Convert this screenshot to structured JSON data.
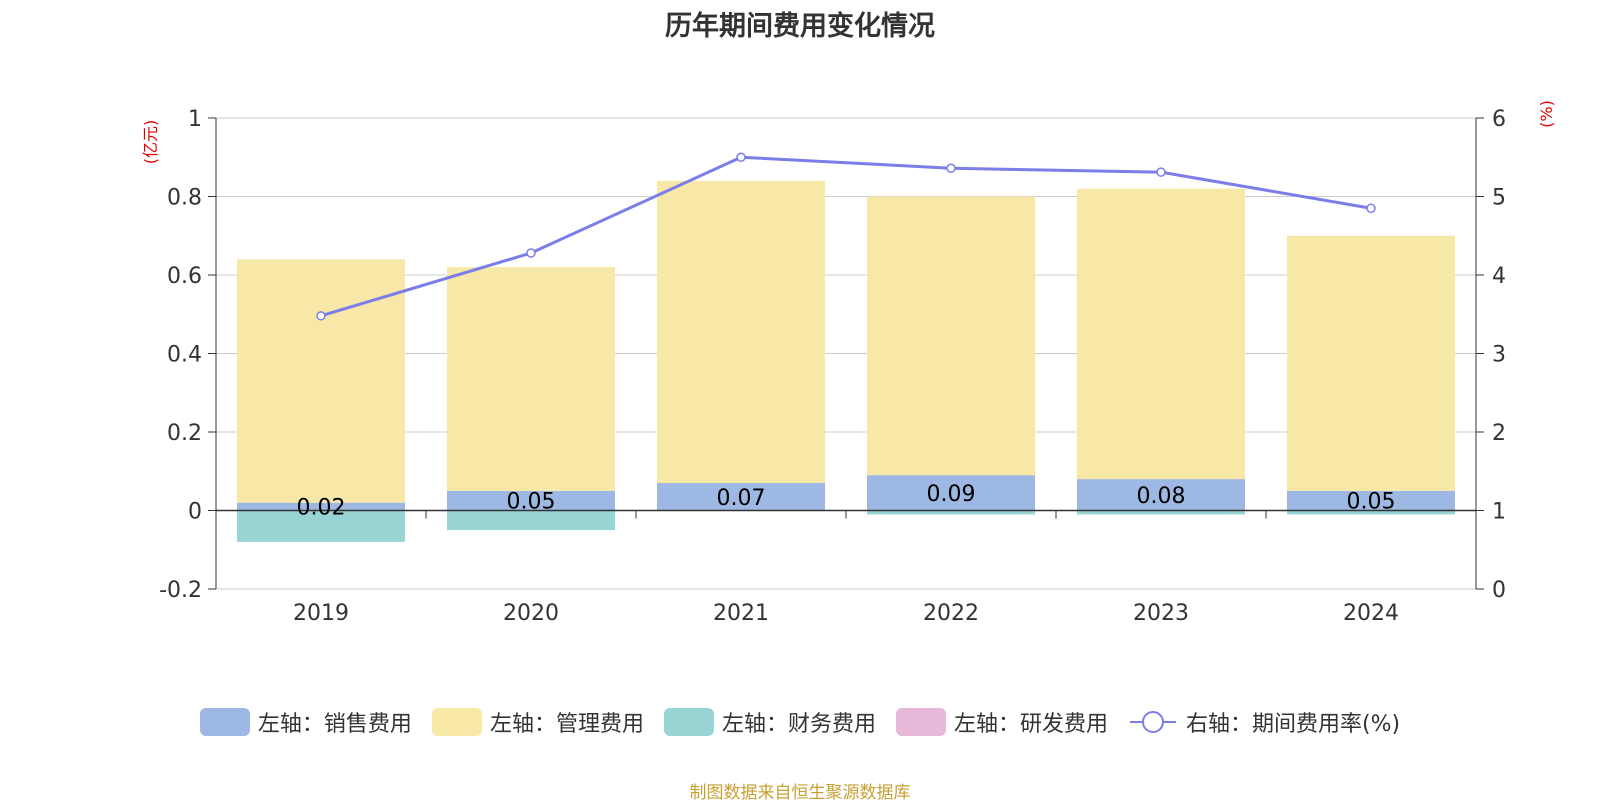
{
  "chart_data": {
    "type": "bar",
    "title": "历年期间费用变化情况",
    "categories": [
      "2019",
      "2020",
      "2021",
      "2022",
      "2023",
      "2024"
    ],
    "y_left": {
      "label": "(亿元)",
      "ylim": [
        -0.2,
        1
      ],
      "ticks": [
        "-0.2",
        "0",
        "0.2",
        "0.4",
        "0.6",
        "0.8",
        "1"
      ]
    },
    "y_right": {
      "label": "(%)",
      "ylim": [
        0,
        6
      ],
      "ticks": [
        "0",
        "1",
        "2",
        "3",
        "4",
        "5",
        "6"
      ]
    },
    "series": [
      {
        "name": "左轴：销售费用",
        "type": "bar",
        "axis": "left",
        "color": "#9db8e2",
        "values": [
          0.02,
          0.05,
          0.07,
          0.09,
          0.08,
          0.05
        ],
        "labels": [
          "0.02",
          "0.05",
          "0.07",
          "0.09",
          "0.08",
          "0.05"
        ]
      },
      {
        "name": "左轴：管理费用",
        "type": "bar",
        "axis": "left",
        "color": "#f7e8a8",
        "values": [
          0.62,
          0.57,
          0.77,
          0.71,
          0.74,
          0.65
        ]
      },
      {
        "name": "左轴：财务费用",
        "type": "bar",
        "axis": "left",
        "color": "#98d4d4",
        "values": [
          -0.08,
          -0.05,
          0.0,
          -0.01,
          -0.01,
          -0.01
        ]
      },
      {
        "name": "左轴：研发费用",
        "type": "bar",
        "axis": "left",
        "color": "#e8b8d8",
        "values": [
          0,
          0,
          0,
          0,
          0,
          0
        ]
      },
      {
        "name": "右轴：期间费用率(%)",
        "type": "line",
        "axis": "right",
        "color": "#7b7de8",
        "values": [
          3.48,
          4.28,
          5.5,
          5.36,
          5.31,
          4.85
        ]
      }
    ],
    "grid": true,
    "legend_position": "bottom"
  },
  "footer": {
    "source": "制图数据来自恒生聚源数据库"
  }
}
